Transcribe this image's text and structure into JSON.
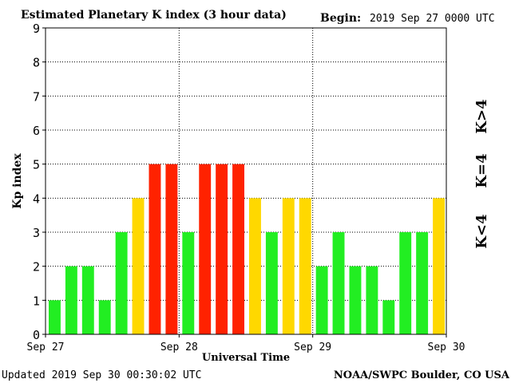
{
  "chart_data": {
    "type": "bar",
    "title": "Estimated Planetary K index (3 hour data)",
    "begin_label": "Begin:",
    "begin_value": "2019 Sep 27 0000 UTC",
    "xlabel": "Universal Time",
    "ylabel": "Kp index",
    "ylim": [
      0,
      9
    ],
    "y_ticks": [
      "0",
      "1",
      "2",
      "3",
      "4",
      "5",
      "6",
      "7",
      "8",
      "9"
    ],
    "x_tick_labels": [
      "Sep 27",
      "Sep 28",
      "Sep 29",
      "Sep 30"
    ],
    "grid": true,
    "values": [
      1,
      2,
      2,
      1,
      3,
      4,
      5,
      5,
      3,
      5,
      5,
      5,
      4,
      3,
      4,
      4,
      2,
      3,
      2,
      2,
      1,
      3,
      3,
      4
    ],
    "legend": {
      "low": "K<4",
      "mid": "K=4",
      "high": "K>4"
    },
    "colors": {
      "low": "#22ee22",
      "mid": "#ffd800",
      "high": "#ff2200"
    },
    "updated": "Updated 2019 Sep 30 00:30:02 UTC",
    "source": "NOAA/SWPC Boulder, CO USA"
  }
}
